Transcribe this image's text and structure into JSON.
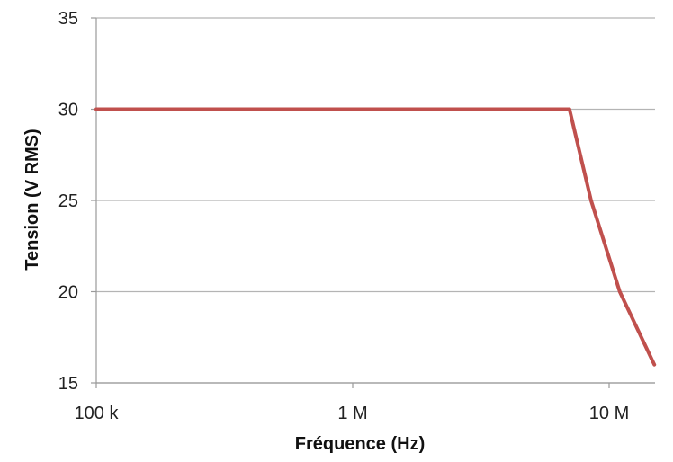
{
  "chart_data": {
    "type": "line",
    "xlabel": "Fréquence (Hz)",
    "ylabel": "Tension (V RMS)",
    "x_scale": "log",
    "xlim": [
      100000,
      15000000
    ],
    "ylim": [
      15,
      35
    ],
    "x_ticks": [
      {
        "value": 100000,
        "label": "100 k"
      },
      {
        "value": 1000000,
        "label": "1 M"
      },
      {
        "value": 10000000,
        "label": "10 M"
      }
    ],
    "y_ticks": [
      {
        "value": 15,
        "label": "15"
      },
      {
        "value": 20,
        "label": "20"
      },
      {
        "value": 25,
        "label": "25"
      },
      {
        "value": 30,
        "label": "30"
      },
      {
        "value": 35,
        "label": "35"
      }
    ],
    "grid": {
      "horizontal": true,
      "vertical": false
    },
    "series": [
      {
        "color": "#c0504d",
        "points": [
          {
            "x": 100000,
            "y": 30
          },
          {
            "x": 7000000,
            "y": 30
          },
          {
            "x": 8500000,
            "y": 25
          },
          {
            "x": 11000000,
            "y": 20
          },
          {
            "x": 15000000,
            "y": 16
          }
        ]
      }
    ]
  }
}
